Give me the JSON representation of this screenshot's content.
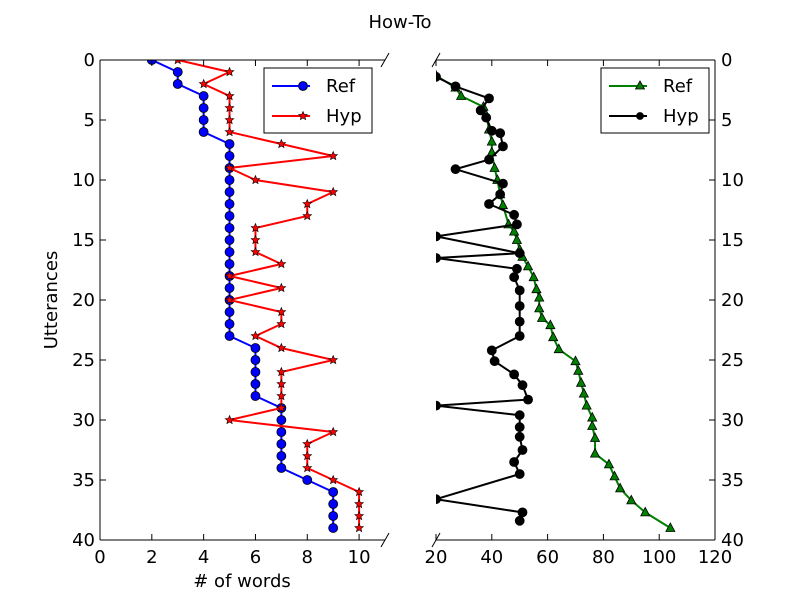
{
  "chart_data": [
    {
      "type": "line",
      "panel": "left",
      "title": "How-To",
      "xlabel": "# of words",
      "ylabel": "Utterances",
      "xlim": [
        0,
        11
      ],
      "ylim": [
        40,
        0
      ],
      "xticks": [
        0,
        2,
        4,
        6,
        8,
        10
      ],
      "yticks": [
        0,
        5,
        10,
        15,
        20,
        25,
        30,
        35,
        40
      ],
      "legend_position": "top-right",
      "series": [
        {
          "name": "Ref",
          "color": "#0000ff",
          "marker": "circle",
          "x": [
            2,
            3,
            3,
            4,
            4,
            4,
            4,
            5,
            5,
            5,
            5,
            5,
            5,
            5,
            5,
            5,
            5,
            5,
            5,
            5,
            5,
            5,
            5,
            5,
            6,
            6,
            6,
            6,
            6,
            7,
            7,
            7,
            7,
            7,
            7,
            8,
            9,
            9,
            9,
            9
          ],
          "y": [
            0,
            1,
            2,
            3,
            4,
            5,
            6,
            7,
            8,
            9,
            10,
            11,
            12,
            13,
            14,
            15,
            16,
            17,
            18,
            19,
            20,
            21,
            22,
            23,
            24,
            25,
            26,
            27,
            28,
            29,
            30,
            31,
            32,
            33,
            34,
            35,
            36,
            37,
            38,
            39
          ]
        },
        {
          "name": "Hyp",
          "color": "#ff0000",
          "marker": "star",
          "x": [
            3,
            5,
            4,
            5,
            5,
            5,
            5,
            7,
            9,
            5,
            6,
            9,
            8,
            8,
            6,
            6,
            6,
            7,
            5,
            7,
            5,
            7,
            7,
            6,
            7,
            9,
            7,
            7,
            7,
            7,
            5,
            9,
            8,
            8,
            8,
            9,
            10,
            10,
            10,
            10
          ],
          "y": [
            0,
            1,
            2,
            3,
            4,
            5,
            6,
            7,
            8,
            9,
            10,
            11,
            12,
            13,
            14,
            15,
            16,
            17,
            18,
            19,
            20,
            21,
            22,
            23,
            24,
            25,
            26,
            27,
            28,
            29,
            30,
            31,
            32,
            33,
            34,
            35,
            36,
            37,
            38,
            39
          ]
        }
      ]
    },
    {
      "type": "line",
      "panel": "right",
      "xlabel": "",
      "ylabel": "",
      "xlim": [
        20,
        120
      ],
      "ylim": [
        40,
        0
      ],
      "xticks": [
        20,
        40,
        60,
        80,
        100,
        120
      ],
      "yticks": [
        0,
        5,
        10,
        15,
        20,
        25,
        30,
        35,
        40
      ],
      "legend_position": "top-right",
      "series": [
        {
          "name": "Ref",
          "color": "#008000",
          "marker": "triangle",
          "x": [
            20,
            27,
            29,
            37,
            38,
            39,
            40,
            40,
            41,
            42,
            43,
            44,
            46,
            48,
            49,
            50,
            51,
            53,
            55,
            56,
            57,
            57,
            58,
            61,
            62,
            64,
            70,
            71,
            72,
            73,
            74,
            76,
            76,
            77,
            77,
            82,
            84,
            86,
            90,
            95,
            104
          ],
          "y": [
            1.3,
            2.3,
            3,
            3.9,
            4.6,
            5.8,
            6.8,
            7.7,
            9,
            10,
            11.2,
            12.1,
            13.7,
            14.3,
            15,
            15.8,
            16.4,
            17.2,
            18.1,
            19.1,
            19.8,
            20.7,
            21.5,
            22.1,
            23.1,
            24.1,
            25.1,
            25.9,
            26.9,
            27.8,
            28.8,
            29.8,
            30.5,
            31.5,
            32.8,
            33.7,
            34.7,
            35.7,
            36.7,
            37.7,
            39
          ]
        },
        {
          "name": "Hyp",
          "color": "#000000",
          "marker": "circle",
          "x": [
            20,
            27,
            39,
            36,
            38,
            40,
            43,
            44,
            39,
            27,
            44,
            43,
            39,
            48,
            49,
            20,
            50,
            20,
            49,
            48,
            50,
            50,
            50,
            50,
            40,
            41,
            48,
            51,
            53,
            20,
            50,
            50,
            50,
            51,
            48,
            50,
            20,
            51,
            50
          ],
          "y": [
            1.4,
            2.2,
            3.2,
            4.2,
            4.8,
            5.9,
            6.1,
            7.2,
            8.3,
            9.1,
            10.3,
            11.2,
            12,
            12.9,
            13.7,
            14.7,
            16.1,
            16.5,
            17.4,
            18.1,
            19.2,
            20.5,
            21.8,
            23,
            24.2,
            25.1,
            26.2,
            27.1,
            28.3,
            28.8,
            29.6,
            30.6,
            31.4,
            32.5,
            33.5,
            34.5,
            36.6,
            37.7,
            38.4
          ]
        }
      ]
    }
  ]
}
